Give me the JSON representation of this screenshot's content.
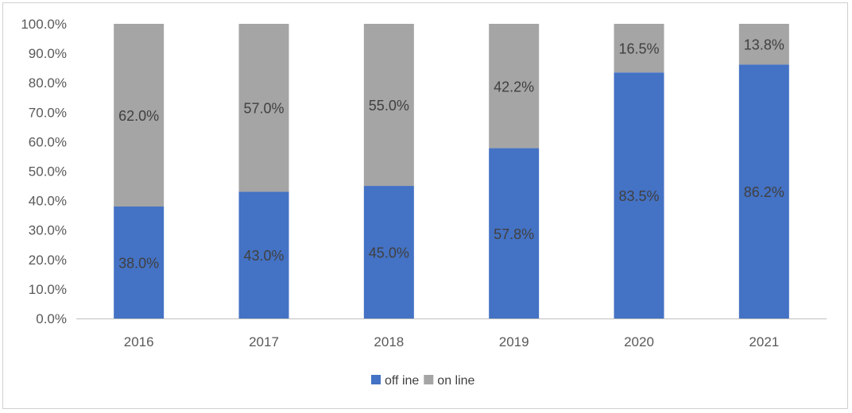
{
  "chart_data": {
    "type": "bar",
    "stacked": true,
    "categories": [
      "2016",
      "2017",
      "2018",
      "2019",
      "2020",
      "2021"
    ],
    "series": [
      {
        "name": "off ine",
        "values": [
          38.0,
          43.0,
          45.0,
          57.8,
          83.5,
          86.2
        ],
        "labels": [
          "38.0%",
          "43.0%",
          "45.0%",
          "57.8%",
          "83.5%",
          "86.2%"
        ],
        "color": "#4472c4"
      },
      {
        "name": "on line",
        "values": [
          62.0,
          57.0,
          55.0,
          42.2,
          16.5,
          13.8
        ],
        "labels": [
          "62.0%",
          "57.0%",
          "55.0%",
          "42.2%",
          "16.5%",
          "13.8%"
        ],
        "color": "#a5a5a5"
      }
    ],
    "ylim": [
      0,
      100
    ],
    "ytick_values": [
      0,
      10,
      20,
      30,
      40,
      50,
      60,
      70,
      80,
      90,
      100
    ],
    "ytick_labels": [
      "0.0%",
      "10.0%",
      "20.0%",
      "30.0%",
      "40.0%",
      "50.0%",
      "60.0%",
      "70.0%",
      "80.0%",
      "90.0%",
      "100.0%"
    ],
    "title": "",
    "xlabel": "",
    "ylabel": "",
    "grid": false,
    "legend_position": "bottom"
  }
}
